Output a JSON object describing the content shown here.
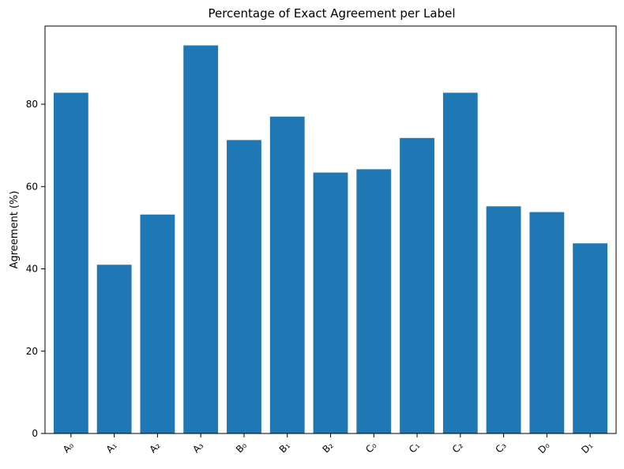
{
  "chart_data": {
    "type": "bar",
    "title": "Percentage of Exact Agreement per Label",
    "xlabel": "",
    "ylabel": "Agreement (%)",
    "categories": [
      "A₀",
      "A₁",
      "A₂",
      "A₃",
      "B₀",
      "B₁",
      "B₂",
      "C₀",
      "C₁",
      "C₂",
      "C₃",
      "D₀",
      "D₁"
    ],
    "values": [
      82.8,
      41.0,
      53.2,
      94.3,
      71.3,
      77.0,
      63.4,
      64.2,
      71.8,
      82.8,
      55.2,
      53.8,
      46.2
    ],
    "ylim": [
      0,
      99
    ],
    "yticks": [
      0,
      20,
      40,
      60,
      80
    ],
    "bar_color": "#1f77b4",
    "grid": false,
    "legend": "none"
  }
}
